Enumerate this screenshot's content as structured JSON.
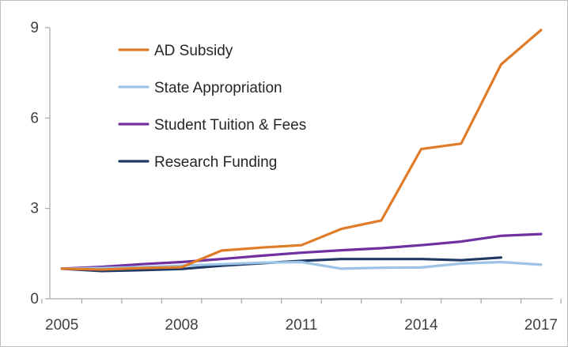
{
  "chart_data": {
    "type": "line",
    "title": "",
    "xlabel": "",
    "ylabel": "",
    "x": [
      2005,
      2006,
      2007,
      2008,
      2009,
      2010,
      2011,
      2012,
      2013,
      2014,
      2015,
      2016,
      2017
    ],
    "xlim": [
      2004.7,
      2017.3
    ],
    "ylim": [
      0,
      9
    ],
    "x_ticks": [
      "2005",
      "2008",
      "2011",
      "2014",
      "2017"
    ],
    "x_tick_values": [
      2005,
      2008,
      2011,
      2014,
      2017
    ],
    "y_ticks": [
      "0",
      "3",
      "6",
      "9"
    ],
    "y_tick_values": [
      0,
      3,
      6,
      9
    ],
    "grid": false,
    "legend_position": "top-left",
    "series": [
      {
        "name": "AD Subsidy",
        "color": "#E07B28",
        "values": [
          1.0,
          0.97,
          1.02,
          1.05,
          1.6,
          1.7,
          1.78,
          2.32,
          2.6,
          4.97,
          5.15,
          7.78,
          8.92
        ]
      },
      {
        "name": "State Appropriation",
        "color": "#9DC3E6",
        "values": [
          1.0,
          1.02,
          1.05,
          1.1,
          1.15,
          1.2,
          1.22,
          1.0,
          1.03,
          1.04,
          1.17,
          1.22,
          1.13
        ]
      },
      {
        "name": "Student Tuition & Fees",
        "color": "#7030A0",
        "values": [
          1.0,
          1.06,
          1.15,
          1.22,
          1.32,
          1.43,
          1.53,
          1.61,
          1.68,
          1.78,
          1.9,
          2.09,
          2.15
        ]
      },
      {
        "name": "Research Funding",
        "color": "#1F3864",
        "values": [
          1.0,
          0.92,
          0.95,
          0.99,
          1.1,
          1.18,
          1.26,
          1.32,
          1.32,
          1.32,
          1.28,
          1.37,
          null
        ]
      }
    ]
  }
}
